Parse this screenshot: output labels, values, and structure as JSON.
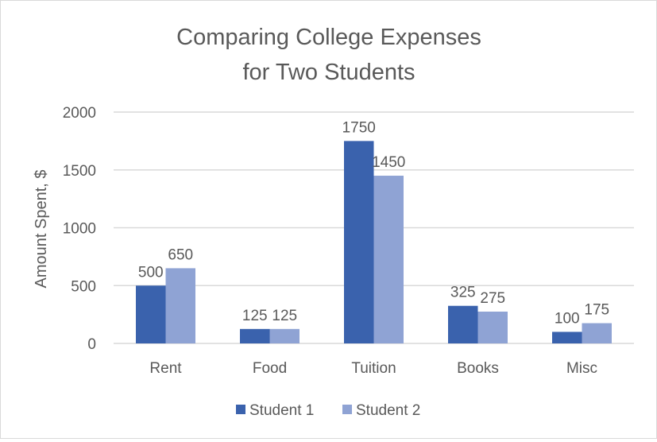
{
  "chart_data": {
    "type": "bar",
    "title_lines": [
      "Comparing College Expenses",
      "for Two Students"
    ],
    "xlabel": "",
    "ylabel": "Amount Spent, $",
    "categories": [
      "Rent",
      "Food",
      "Tuition",
      "Books",
      "Misc"
    ],
    "series": [
      {
        "name": "Student 1",
        "values": [
          500,
          125,
          1750,
          325,
          100
        ],
        "color": "#3a62ad"
      },
      {
        "name": "Student 2",
        "values": [
          650,
          125,
          1450,
          275,
          175
        ],
        "color": "#8fa3d4"
      }
    ],
    "ylim": [
      0,
      2000
    ],
    "yticks": [
      0,
      500,
      1000,
      1500,
      2000
    ],
    "grid": true,
    "data_labels": true,
    "legend_placement": "bottom"
  }
}
